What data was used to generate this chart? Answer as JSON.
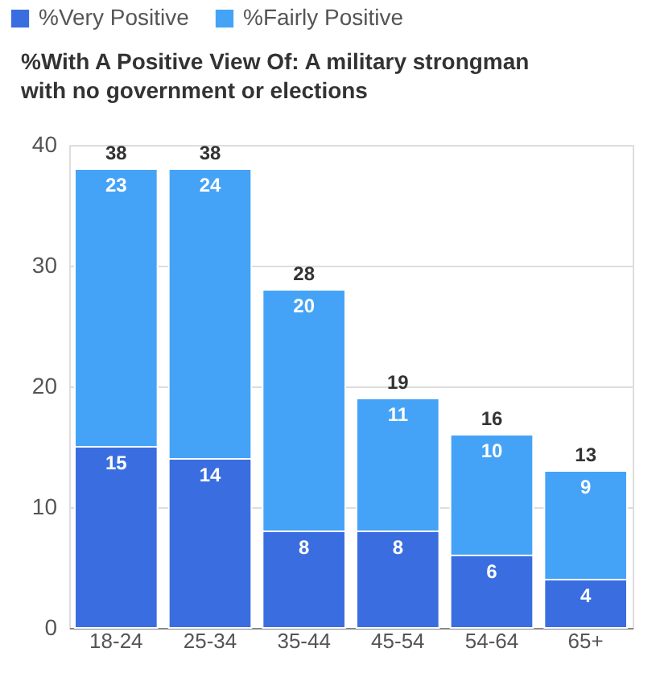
{
  "chart_data": {
    "type": "bar",
    "title": "%With A Positive View Of: A military strongman with no government or elections",
    "categories": [
      "18-24",
      "25-34",
      "35-44",
      "45-54",
      "54-64",
      "65+"
    ],
    "series": [
      {
        "name": "%Very Positive",
        "color": "#3a6ee0",
        "values": [
          15,
          14,
          8,
          8,
          6,
          4
        ]
      },
      {
        "name": "%Fairly Positive",
        "color": "#45a3f7",
        "values": [
          23,
          24,
          20,
          11,
          10,
          9
        ]
      }
    ],
    "stacked": true,
    "ylim": [
      0,
      40
    ],
    "yticks": [
      0,
      10,
      20,
      30,
      40
    ],
    "grid": "y",
    "legend": "top left",
    "data_labels": true,
    "totals": [
      "38",
      "38",
      "28",
      "19",
      "16",
      "13"
    ]
  }
}
